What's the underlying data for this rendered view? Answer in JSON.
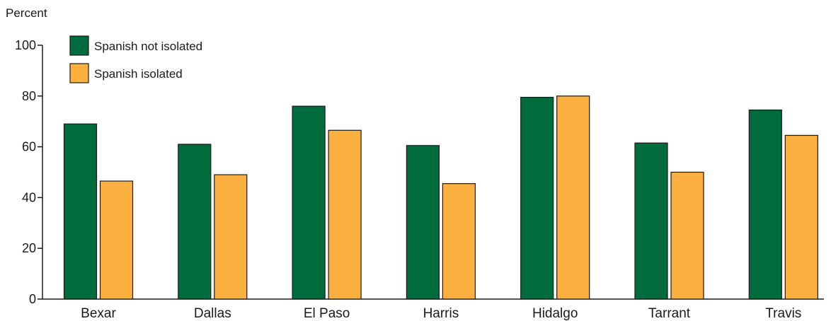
{
  "chart_data": {
    "type": "bar",
    "title": "",
    "xlabel": "",
    "ylabel": "Percent",
    "ylim": [
      0,
      100
    ],
    "yticks": [
      0,
      20,
      40,
      60,
      80,
      100
    ],
    "grid": false,
    "legend_position": "top-left",
    "categories": [
      "Bexar",
      "Dallas",
      "El Paso",
      "Harris",
      "Hidalgo",
      "Tarrant",
      "Travis"
    ],
    "series": [
      {
        "name": "Spanish not isolated",
        "color": "#006b3c",
        "values": [
          69,
          61,
          76,
          60.5,
          79.5,
          61.5,
          74.5
        ]
      },
      {
        "name": "Spanish isolated",
        "color": "#fbb040",
        "values": [
          46.5,
          49,
          66.5,
          45.5,
          80,
          50,
          64.5
        ]
      }
    ]
  }
}
